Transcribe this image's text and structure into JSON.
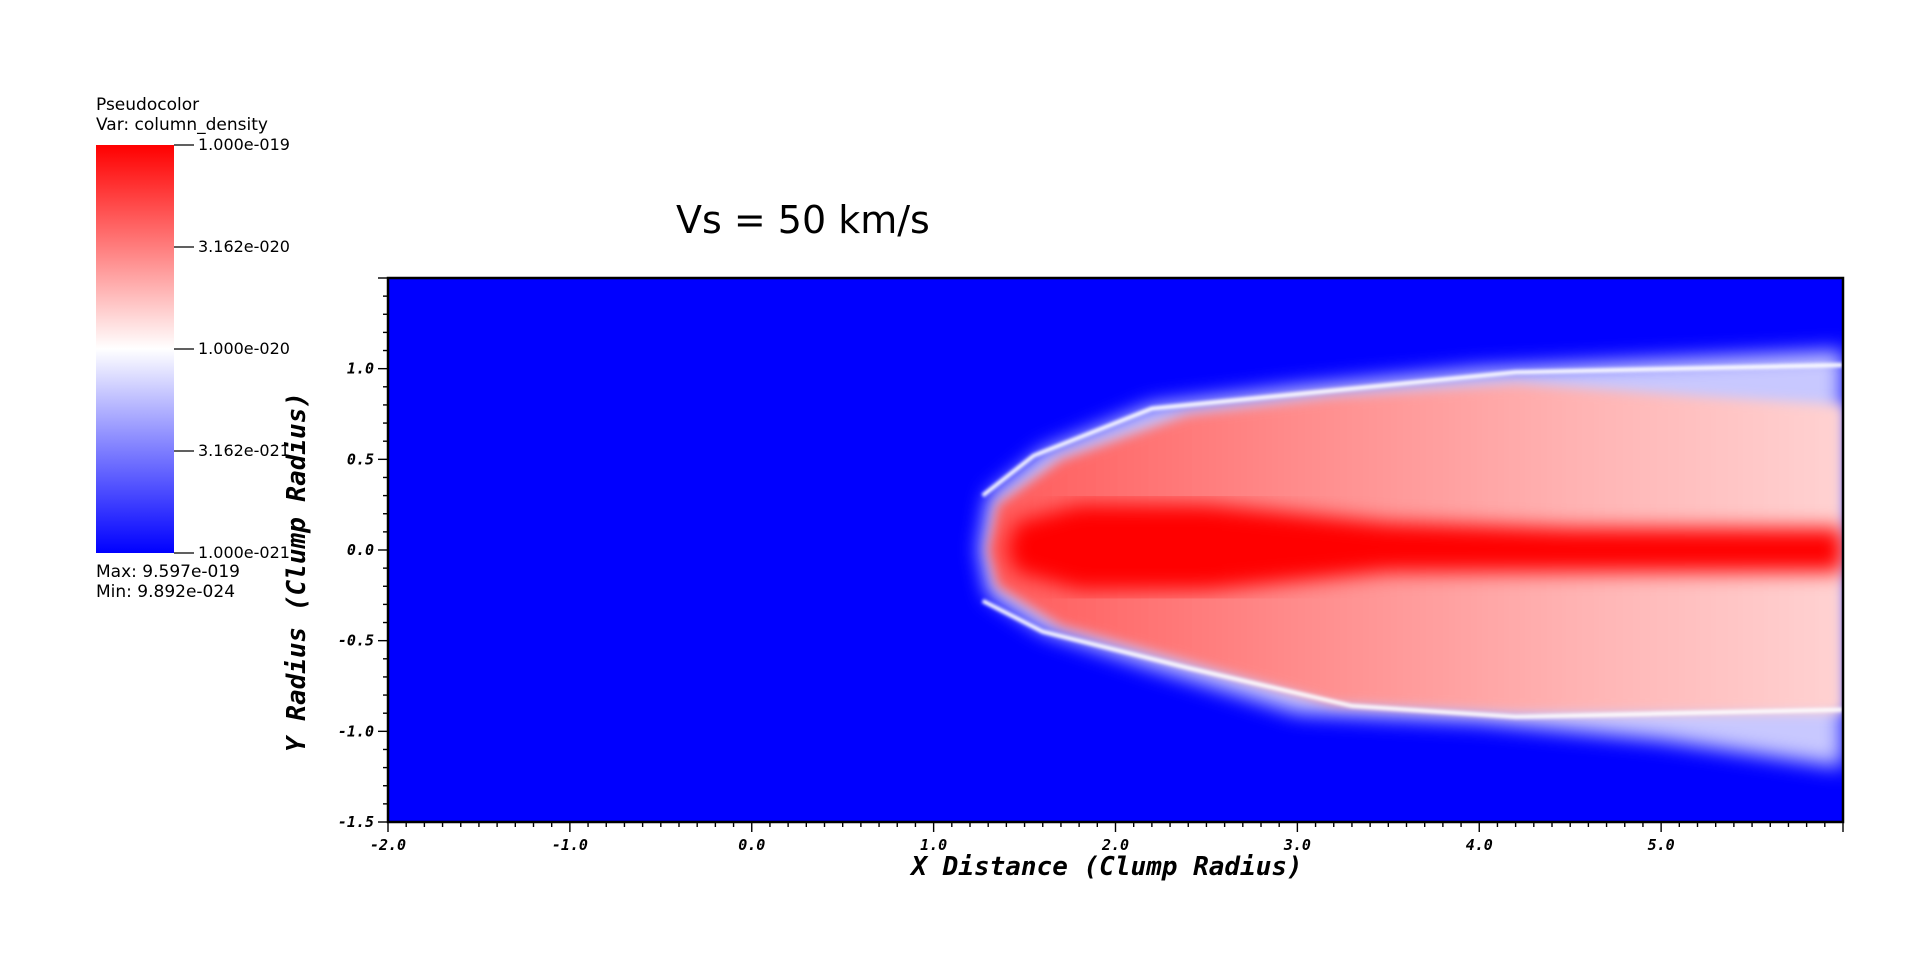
{
  "legend": {
    "plot_type": "Pseudocolor",
    "var_label": "Var: column_density",
    "ticks": [
      "1.000e-019",
      "3.162e-020",
      "1.000e-020",
      "3.162e-021",
      "1.000e-021"
    ],
    "max_label": "Max:  9.597e-019",
    "min_label": "Min:  9.892e-024",
    "colors": {
      "high": "#ff0000",
      "mid": "#ffffff",
      "low": "#0000ff"
    }
  },
  "chart_data": {
    "type": "heatmap",
    "title": "Vs = 50 km/s",
    "xlabel": "X Distance (Clump Radius)",
    "ylabel": "Y Radius (Clump Radius)",
    "xlim": [
      -2.0,
      6.0
    ],
    "ylim": [
      -1.5,
      1.5
    ],
    "x_ticks": [
      "-2.0",
      "-1.0",
      "0.0",
      "1.0",
      "2.0",
      "3.0",
      "4.0",
      "5.0"
    ],
    "y_ticks": [
      "1.0",
      "0.5",
      "0.0",
      "-0.5",
      "-1.0",
      "-1.5"
    ],
    "x_tick_values": [
      -2.0,
      -1.0,
      0.0,
      1.0,
      2.0,
      3.0,
      4.0,
      5.0
    ],
    "y_tick_values": [
      1.0,
      0.5,
      0.0,
      -0.5,
      -1.0,
      -1.5
    ],
    "background_color": "#0000ff",
    "features": {
      "cloud_outer": [
        [
          1.3,
          0.3
        ],
        [
          1.6,
          0.55
        ],
        [
          2.2,
          0.8
        ],
        [
          3.0,
          0.9
        ],
        [
          4.0,
          1.0
        ],
        [
          5.0,
          1.05
        ],
        [
          6.0,
          1.1
        ],
        [
          6.0,
          -1.2
        ],
        [
          5.0,
          -1.05
        ],
        [
          4.0,
          -0.95
        ],
        [
          3.0,
          -0.9
        ],
        [
          2.2,
          -0.65
        ],
        [
          1.6,
          -0.45
        ],
        [
          1.3,
          -0.25
        ],
        [
          1.25,
          0.0
        ]
      ],
      "cloud_body": [
        [
          1.35,
          0.25
        ],
        [
          1.7,
          0.5
        ],
        [
          2.4,
          0.75
        ],
        [
          3.2,
          0.85
        ],
        [
          4.2,
          0.92
        ],
        [
          5.2,
          0.85
        ],
        [
          6.0,
          0.8
        ],
        [
          6.0,
          -0.9
        ],
        [
          5.2,
          -0.9
        ],
        [
          4.2,
          -0.9
        ],
        [
          3.2,
          -0.85
        ],
        [
          2.4,
          -0.62
        ],
        [
          1.7,
          -0.42
        ],
        [
          1.35,
          -0.2
        ],
        [
          1.3,
          0.0
        ]
      ],
      "core": [
        [
          1.45,
          0.15
        ],
        [
          1.8,
          0.25
        ],
        [
          2.5,
          0.25
        ],
        [
          3.5,
          0.15
        ],
        [
          4.5,
          0.12
        ],
        [
          6.0,
          0.12
        ],
        [
          6.0,
          -0.12
        ],
        [
          4.5,
          -0.12
        ],
        [
          3.5,
          -0.12
        ],
        [
          2.5,
          -0.22
        ],
        [
          1.8,
          -0.22
        ],
        [
          1.45,
          -0.12
        ],
        [
          1.4,
          0.0
        ]
      ],
      "edge_line": [
        [
          1.27,
          0.3
        ],
        [
          1.55,
          0.52
        ],
        [
          2.2,
          0.78
        ],
        [
          3.0,
          0.86
        ],
        [
          4.2,
          0.98
        ],
        [
          6.0,
          1.02
        ]
      ],
      "edge_line_lower": [
        [
          1.27,
          -0.28
        ],
        [
          1.6,
          -0.45
        ],
        [
          2.4,
          -0.65
        ],
        [
          3.3,
          -0.86
        ],
        [
          4.2,
          -0.92
        ],
        [
          6.0,
          -0.88
        ]
      ]
    }
  }
}
